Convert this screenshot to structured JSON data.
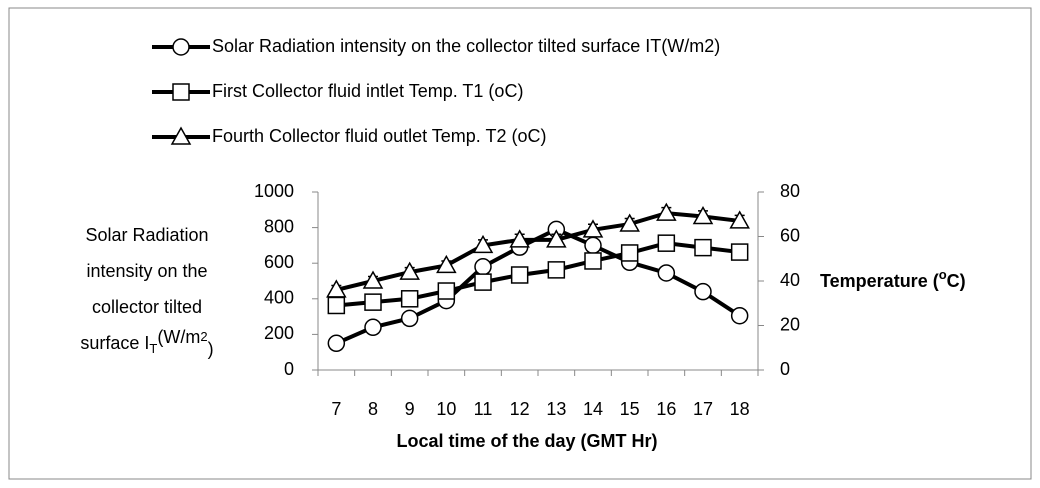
{
  "chart_data": {
    "type": "line",
    "x": [
      7,
      8,
      9,
      10,
      11,
      12,
      13,
      14,
      15,
      16,
      17,
      18
    ],
    "xlabel": "Local time of the day (GMT Hr)",
    "ylabel_lines": [
      "Solar Radiation",
      "intensity on the",
      "collector tilted"
    ],
    "ylabel_last": [
      "surface I",
      "T",
      "(W/m",
      "2",
      ")"
    ],
    "y2label": [
      "Temperature (",
      "o",
      "C)"
    ],
    "ylim": [
      0,
      1000
    ],
    "yticks": [
      0,
      200,
      400,
      600,
      800,
      1000
    ],
    "y2lim": [
      0,
      80
    ],
    "y2ticks": [
      0,
      20,
      40,
      60,
      80
    ],
    "series": [
      {
        "name": "Solar Radiation intensity on the collector tilted surface IT(W/m2)",
        "color": "#000000",
        "marker": "circle",
        "axis": "y",
        "values": [
          150,
          240,
          290,
          390,
          580,
          690,
          790,
          700,
          605,
          545,
          440,
          305
        ],
        "errors": [
          15,
          15,
          15,
          20,
          25,
          25,
          25,
          25,
          20,
          15,
          15,
          15
        ]
      },
      {
        "name": "First Collector fluid intlet Temp. T1 (oC)",
        "color": "#000000",
        "marker": "square",
        "axis": "y2",
        "values": [
          29,
          30.5,
          32,
          35.5,
          39.5,
          42.7,
          45,
          49,
          52.6,
          57,
          55,
          53
        ],
        "errors": [
          2,
          2,
          2,
          2,
          2,
          2,
          2,
          2,
          2.5,
          2.5,
          2.5,
          2.5
        ]
      },
      {
        "name": "Fourth Collector fluid outlet Temp. T2 (oC)",
        "color": "#000000",
        "marker": "triangle",
        "axis": "y2",
        "values": [
          36,
          40,
          44,
          47,
          56,
          58.5,
          58.5,
          63,
          65.6,
          70.5,
          69,
          67
        ],
        "errors": [
          2,
          2,
          2,
          2,
          2.5,
          2.5,
          2.5,
          2.5,
          2.5,
          2.5,
          2.5,
          2.5
        ]
      }
    ]
  }
}
